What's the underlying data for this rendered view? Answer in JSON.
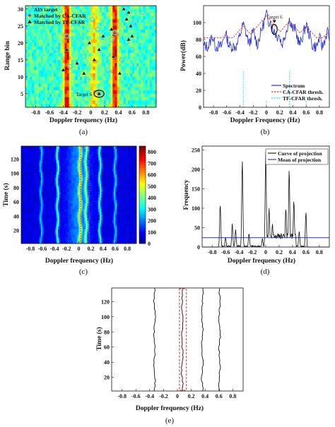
{
  "chart_data": [
    {
      "id": "a",
      "type": "scatter",
      "panel_label": "(a)",
      "xlabel": "Doppler frequency (Hz)",
      "ylabel": "Range bin",
      "xlim": [
        -0.95,
        0.95
      ],
      "ylim": [
        1,
        31
      ],
      "xticks": [
        "-0.8",
        "-0.6",
        "-0.4",
        "-0.2",
        "0",
        "0.2",
        "0.4",
        "0.6",
        "0.8"
      ],
      "yticks": [
        "5",
        "10",
        "15",
        "20",
        "25",
        "30"
      ],
      "background": "range-Doppler heatmap",
      "legend": [
        "AIS target",
        "Matched by CA-CFAR",
        "Matched by TF-CFAR"
      ],
      "legend_position": "top-left",
      "annotation": "Target 6",
      "series": [
        {
          "name": "AIS target",
          "color": "#41d6e8",
          "marker": "circle",
          "points": [
            [
              0.02,
              27
            ],
            [
              0.1,
              24
            ],
            [
              -0.35,
              22
            ],
            [
              -0.15,
              21
            ],
            [
              0.3,
              21
            ],
            [
              0.52,
              20
            ],
            [
              0.62,
              26
            ],
            [
              0.75,
              29
            ],
            [
              -0.5,
              18
            ],
            [
              -0.1,
              16
            ],
            [
              0.45,
              15
            ],
            [
              -0.3,
              13
            ],
            [
              0.25,
              12
            ],
            [
              0.12,
              5
            ],
            [
              -0.05,
              9
            ],
            [
              0.35,
              23
            ],
            [
              0.6,
              18
            ]
          ]
        },
        {
          "name": "Matched by CA-CFAR",
          "color": "#e8323a",
          "marker": "diamond",
          "points": [
            [
              0.12,
              5
            ]
          ]
        },
        {
          "name": "Matched by TF-CFAR",
          "color": "#1a1a1a",
          "marker": "triangle",
          "points": [
            [
              0.48,
              30
            ],
            [
              0.55,
              29
            ],
            [
              0.52,
              27
            ],
            [
              0.58,
              25
            ],
            [
              0.6,
              22
            ],
            [
              0.55,
              21
            ],
            [
              0.3,
              24
            ],
            [
              0.18,
              22
            ],
            [
              0.12,
              18
            ],
            [
              0.05,
              15
            ],
            [
              -0.02,
              20
            ],
            [
              -0.35,
              18
            ],
            [
              -0.2,
              14
            ],
            [
              -0.4,
              12
            ],
            [
              0.33,
              16
            ],
            [
              0.42,
              11
            ],
            [
              -0.1,
              11
            ],
            [
              0.12,
              5
            ]
          ]
        }
      ]
    },
    {
      "id": "b",
      "type": "line",
      "panel_label": "(b)",
      "xlabel": "Doppler Frequency (Hz)",
      "ylabel": "Power(dB)",
      "xlim": [
        -0.95,
        0.95
      ],
      "ylim": [
        0,
        120
      ],
      "xticks": [
        "-0.8",
        "-0.6",
        "-0.4",
        "-0.2",
        "0",
        "0.2",
        "0.4",
        "0.6",
        "0.8"
      ],
      "yticks": [
        "0",
        "20",
        "40",
        "60",
        "80",
        "100"
      ],
      "legend": [
        "Spectrum",
        "CA-CFAR thresh.",
        "TF-CFAR thresh."
      ],
      "legend_position": "bottom-right",
      "annotation": "Target 6",
      "spectrum_peaks": [
        [
          -0.82,
          85
        ],
        [
          -0.62,
          88
        ],
        [
          -0.35,
          98
        ],
        [
          -0.2,
          90
        ],
        [
          0.0,
          110
        ],
        [
          0.05,
          104
        ],
        [
          0.12,
          92
        ],
        [
          0.18,
          88
        ],
        [
          0.35,
          104
        ],
        [
          0.42,
          95
        ],
        [
          0.6,
          98
        ],
        [
          0.8,
          82
        ],
        [
          0.92,
          90
        ]
      ],
      "tf_spikes": [
        [
          -0.35,
          44
        ],
        [
          0.0,
          8
        ],
        [
          0.35,
          44
        ],
        [
          0.6,
          8
        ]
      ]
    },
    {
      "id": "c",
      "type": "heatmap",
      "panel_label": "(c)",
      "xlabel": "Doppler frequency (Hz)",
      "ylabel": "Time (s)",
      "xlim": [
        -0.95,
        0.95
      ],
      "ylim": [
        2,
        138
      ],
      "xticks": [
        "-0.8",
        "-0.6",
        "-0.4",
        "-0.2",
        "0",
        "0.2",
        "0.4",
        "0.6",
        "0.8"
      ],
      "yticks": [
        "20",
        "40",
        "60",
        "80",
        "100",
        "120"
      ],
      "colorbar": {
        "min": 0,
        "max": 850,
        "ticks": [
          "800",
          "700",
          "600",
          "500",
          "400",
          "300",
          "200",
          "100",
          "0"
        ]
      },
      "tracks": [
        {
          "x": -0.62,
          "intensity": 0.55
        },
        {
          "x": -0.35,
          "intensity": 0.9
        },
        {
          "x": 0.02,
          "intensity": 0.95
        },
        {
          "x": 0.12,
          "intensity": 0.8
        },
        {
          "x": 0.35,
          "intensity": 0.85
        },
        {
          "x": 0.6,
          "intensity": 0.6
        }
      ],
      "box": [
        0.03,
        0.17
      ]
    },
    {
      "id": "d",
      "type": "line",
      "panel_label": "(d)",
      "xlabel": "Doppler frequency (Hz)",
      "ylabel": "Frequency",
      "xlim": [
        -0.95,
        0.95
      ],
      "ylim": [
        0,
        260
      ],
      "xticks": [
        "-0.8",
        "-0.6",
        "-0.4",
        "-0.2",
        "0",
        "0.2",
        "0.4",
        "0.6",
        "0.8"
      ],
      "yticks": [
        "0",
        "50",
        "100",
        "150",
        "200",
        "250"
      ],
      "legend": [
        "Curve of projection",
        "Mean of projection"
      ],
      "legend_position": "top-right",
      "mean": 24,
      "peaks": [
        [
          -0.68,
          110
        ],
        [
          -0.6,
          25
        ],
        [
          -0.5,
          60
        ],
        [
          -0.45,
          45
        ],
        [
          -0.35,
          225
        ],
        [
          -0.25,
          35
        ],
        [
          -0.05,
          22
        ],
        [
          0.0,
          245
        ],
        [
          0.05,
          100
        ],
        [
          0.1,
          60
        ],
        [
          0.18,
          30
        ],
        [
          0.3,
          100
        ],
        [
          0.35,
          200
        ],
        [
          0.42,
          120
        ],
        [
          0.5,
          40
        ],
        [
          0.6,
          90
        ]
      ]
    },
    {
      "id": "e",
      "type": "line",
      "panel_label": "(e)",
      "xlabel": "Doppler frequency (Hz)",
      "ylabel": "Time (s)",
      "xlim": [
        -0.95,
        0.95
      ],
      "ylim": [
        2,
        138
      ],
      "xticks": [
        "-0.8",
        "-0.6",
        "-0.4",
        "-0.2",
        "0",
        "0.2",
        "0.4",
        "0.6",
        "0.8"
      ],
      "yticks": [
        "20",
        "40",
        "60",
        "80",
        "100",
        "120"
      ],
      "tracks": [
        -0.33,
        0.07,
        0.36,
        0.61
      ],
      "box": [
        0.03,
        0.13
      ]
    }
  ]
}
